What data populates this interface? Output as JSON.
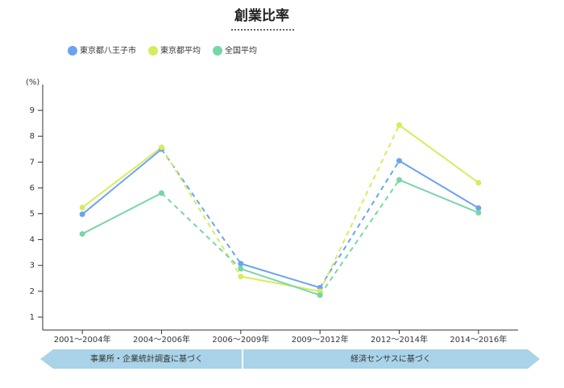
{
  "chart_data": {
    "type": "line",
    "title": "創業比率",
    "y_label": "(%)",
    "categories": [
      "2001〜2004年",
      "2004〜2006年",
      "2006〜2009年",
      "2009〜2012年",
      "2012〜2014年",
      "2014〜2016年"
    ],
    "series": [
      {
        "name": "東京都八王子市",
        "color": "#6aa4f0",
        "values": [
          4.98,
          7.5,
          3.07,
          2.14,
          7.05,
          5.22
        ]
      },
      {
        "name": "東京都平均",
        "color": "#d6ec5c",
        "values": [
          5.24,
          7.57,
          2.57,
          2.0,
          8.43,
          6.2
        ]
      },
      {
        "name": "全国平均",
        "color": "#78d6a6",
        "values": [
          4.22,
          5.8,
          2.87,
          1.85,
          6.31,
          5.04
        ]
      }
    ],
    "dashed_segments": [
      1,
      3
    ],
    "ylim": [
      0.5,
      10
    ],
    "yticks": [
      1,
      2,
      3,
      4,
      5,
      6,
      7,
      8,
      9
    ],
    "source_bands": [
      "事業所・企業統計調査に基づく",
      "経済センサスに基づく"
    ]
  }
}
